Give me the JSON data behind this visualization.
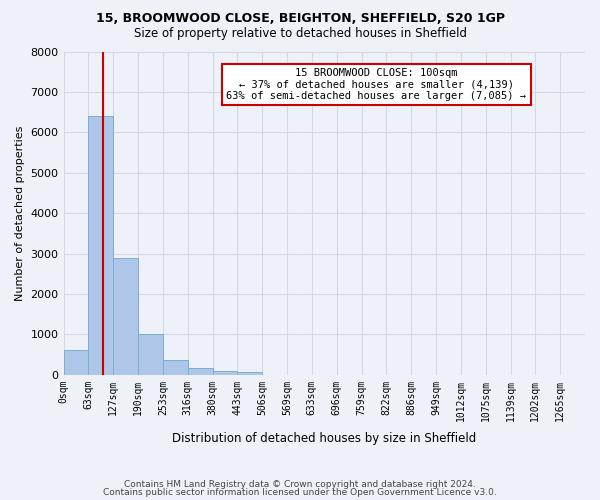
{
  "title1": "15, BROOMWOOD CLOSE, BEIGHTON, SHEFFIELD, S20 1GP",
  "title2": "Size of property relative to detached houses in Sheffield",
  "xlabel": "Distribution of detached houses by size in Sheffield",
  "ylabel": "Number of detached properties",
  "footer1": "Contains HM Land Registry data © Crown copyright and database right 2024.",
  "footer2": "Contains public sector information licensed under the Open Government Licence v3.0.",
  "bin_labels": [
    "0sqm",
    "63sqm",
    "127sqm",
    "190sqm",
    "253sqm",
    "316sqm",
    "380sqm",
    "443sqm",
    "506sqm",
    "569sqm",
    "633sqm",
    "696sqm",
    "759sqm",
    "822sqm",
    "886sqm",
    "949sqm",
    "1012sqm",
    "1075sqm",
    "1139sqm",
    "1202sqm",
    "1265sqm"
  ],
  "bar_values": [
    620,
    6400,
    2900,
    1000,
    370,
    160,
    90,
    80,
    0,
    0,
    0,
    0,
    0,
    0,
    0,
    0,
    0,
    0,
    0,
    0,
    0
  ],
  "bar_color": "#aec6e8",
  "bar_edge_color": "#7bafd4",
  "grid_color": "#d0d8e8",
  "background_color": "#eef2f8",
  "vline_color": "#cc0000",
  "annotation_text": "15 BROOMWOOD CLOSE: 100sqm\n← 37% of detached houses are smaller (4,139)\n63% of semi-detached houses are larger (7,085) →",
  "annotation_box_color": "#ffffff",
  "annotation_box_edge": "#cc0000",
  "ylim": [
    0,
    8000
  ],
  "yticks": [
    0,
    1000,
    2000,
    3000,
    4000,
    5000,
    6000,
    7000,
    8000
  ]
}
